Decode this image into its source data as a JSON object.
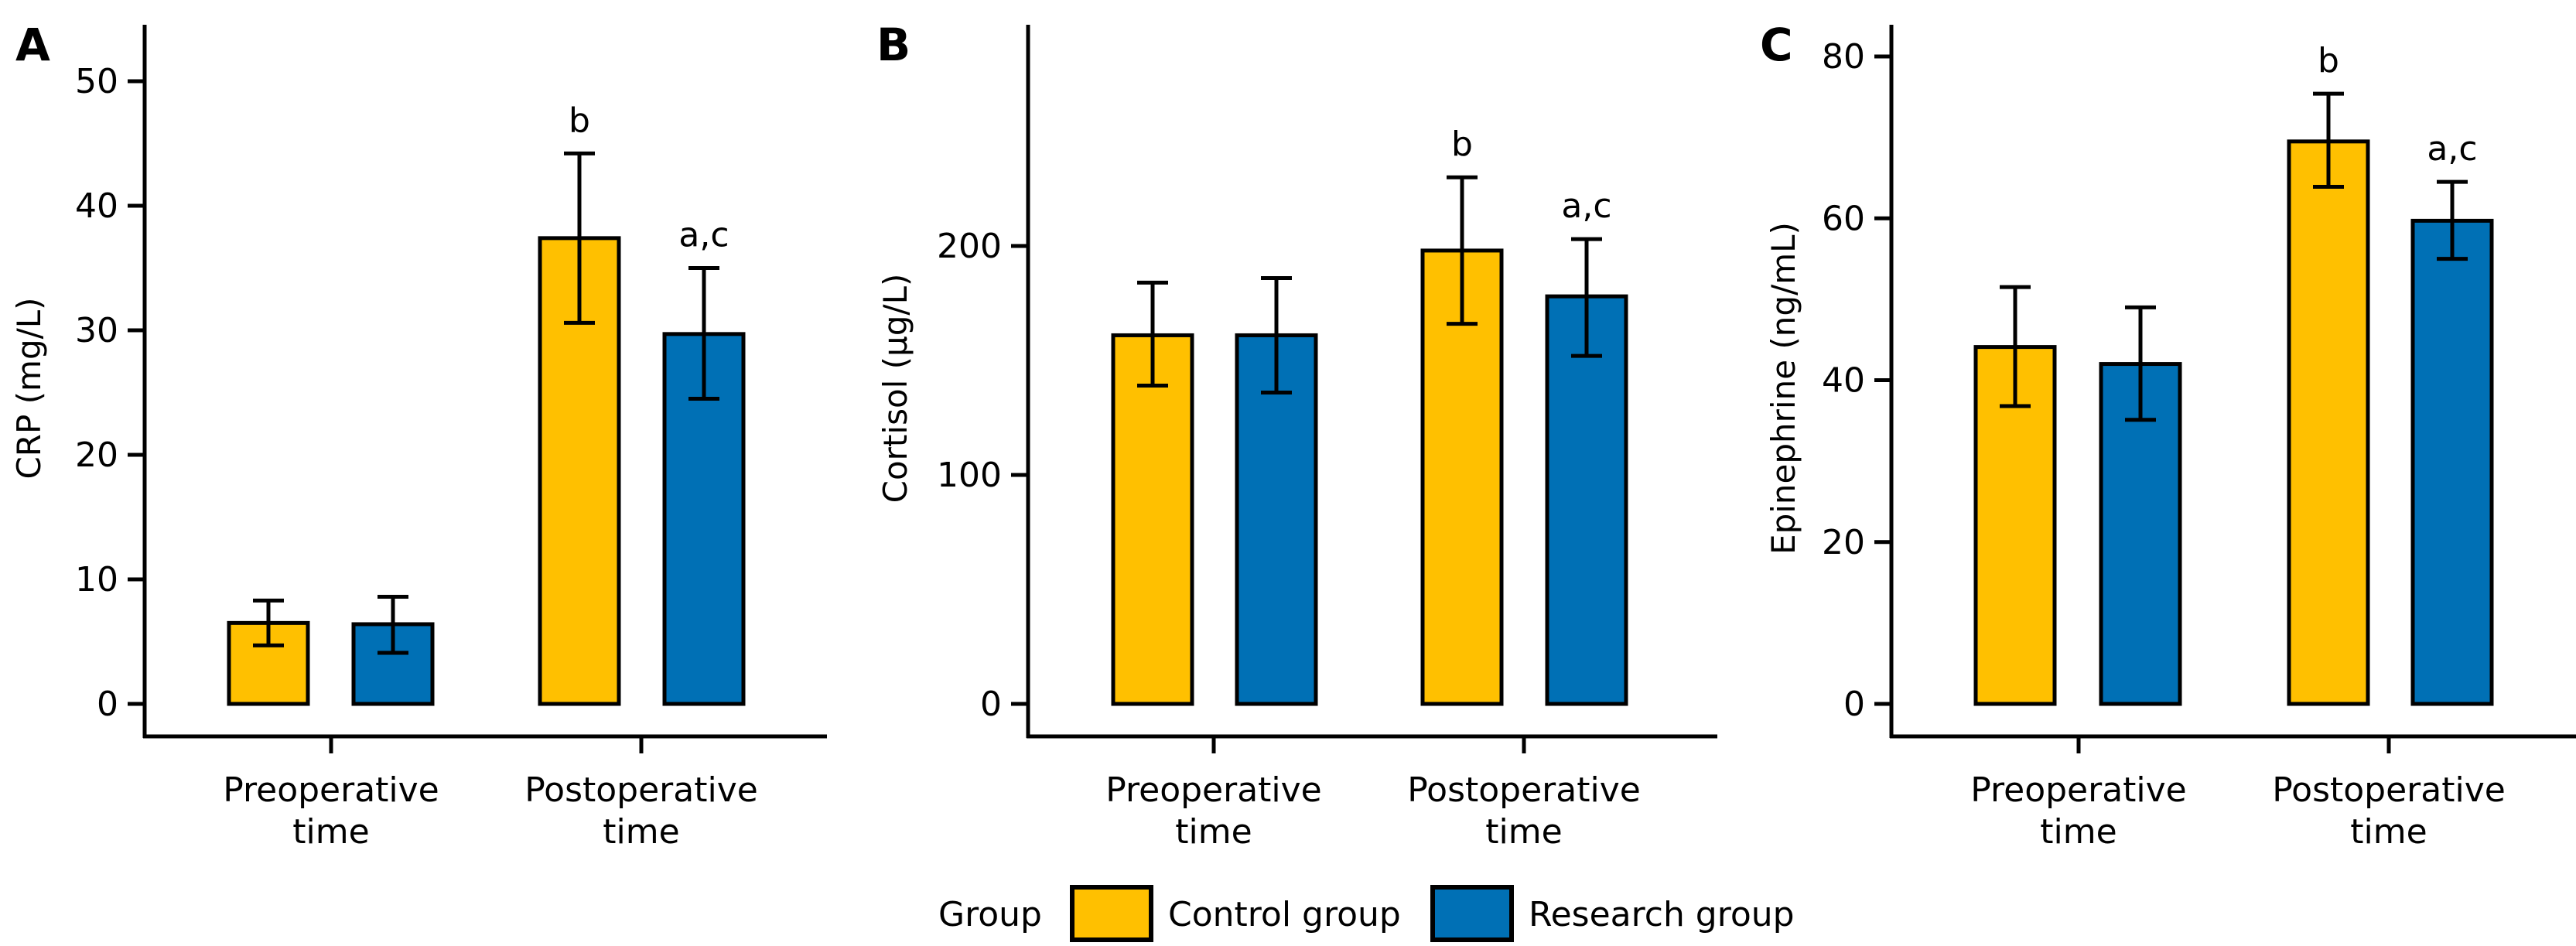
{
  "figure": {
    "legend": {
      "title": "Group",
      "entries": [
        {
          "label": "Control group",
          "color": "#FFC000"
        },
        {
          "label": "Research group",
          "color": "#0070B5"
        }
      ]
    }
  },
  "chart_data": [
    {
      "type": "bar",
      "panel": "A",
      "title": "",
      "xlabel": "",
      "ylabel": "CRP (mg/L)",
      "ylim": [
        0,
        54
      ],
      "yticks": [
        0,
        10,
        20,
        30,
        40,
        50
      ],
      "categories": [
        "Preoperative\ntime",
        "Postoperative\ntime"
      ],
      "category_lines": [
        [
          "Preoperative",
          "time"
        ],
        [
          "Postoperative",
          "time"
        ]
      ],
      "grid": false,
      "legend": "bottom-center",
      "series": [
        {
          "name": "Control group",
          "color": "#FFC000",
          "values": [
            6.5,
            37.4
          ],
          "err_low": [
            4.7,
            30.6
          ],
          "err_high": [
            8.3,
            44.2
          ],
          "annotations": [
            "",
            "b"
          ]
        },
        {
          "name": "Research group",
          "color": "#0070B5",
          "values": [
            6.4,
            29.7
          ],
          "err_low": [
            4.1,
            24.5
          ],
          "err_high": [
            8.6,
            35.0
          ],
          "annotations": [
            "",
            "a,c"
          ]
        }
      ]
    },
    {
      "type": "bar",
      "panel": "B",
      "title": "",
      "xlabel": "",
      "ylabel": "Cortisol (μg/L)",
      "ylim": [
        0,
        300
      ],
      "yticks": [
        0,
        100,
        200
      ],
      "categories": [
        "Preoperative\ntime",
        "Postoperative\ntime"
      ],
      "category_lines": [
        [
          "Preoperative",
          "time"
        ],
        [
          "Postoperative",
          "time"
        ]
      ],
      "grid": false,
      "legend": "bottom-center",
      "series": [
        {
          "name": "Control group",
          "color": "#FFC000",
          "values": [
            161,
            198
          ],
          "err_low": [
            139,
            166
          ],
          "err_high": [
            184,
            230
          ],
          "annotations": [
            "",
            "b"
          ]
        },
        {
          "name": "Research group",
          "color": "#0070B5",
          "values": [
            161,
            178
          ],
          "err_low": [
            136,
            152
          ],
          "err_high": [
            186,
            203
          ],
          "annotations": [
            "",
            "a,c"
          ]
        }
      ]
    },
    {
      "type": "bar",
      "panel": "C",
      "title": "",
      "xlabel": "",
      "ylabel": "Epinephrine (ng/mL)",
      "ylim": [
        0,
        84
      ],
      "yticks": [
        0,
        20,
        40,
        60,
        80
      ],
      "categories": [
        "Preoperative\ntime",
        "Postoperative\ntime"
      ],
      "category_lines": [
        [
          "Preoperative",
          "time"
        ],
        [
          "Postoperative",
          "time"
        ]
      ],
      "grid": false,
      "legend": "bottom-center",
      "series": [
        {
          "name": "Control group",
          "color": "#FFC000",
          "values": [
            44.1,
            69.5
          ],
          "err_low": [
            36.8,
            63.9
          ],
          "err_high": [
            51.5,
            75.4
          ],
          "annotations": [
            "",
            "b"
          ]
        },
        {
          "name": "Research group",
          "color": "#0070B5",
          "values": [
            42.0,
            59.7
          ],
          "err_low": [
            35.1,
            55.0
          ],
          "err_high": [
            49.0,
            64.5
          ],
          "annotations": [
            "",
            "a,c"
          ]
        }
      ]
    }
  ]
}
